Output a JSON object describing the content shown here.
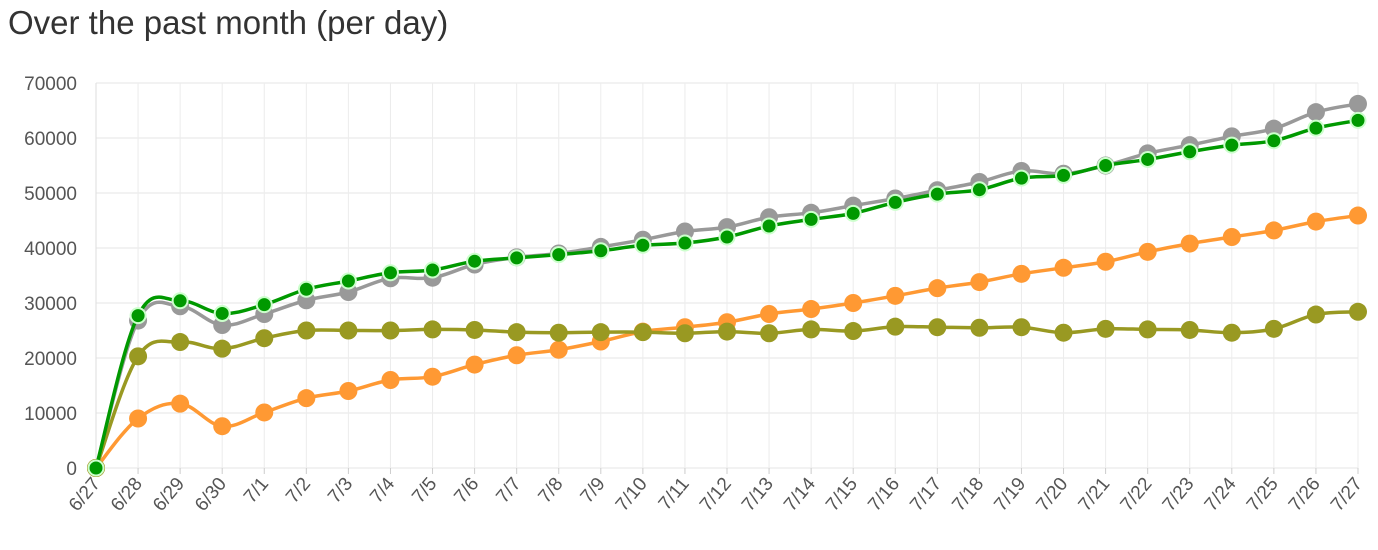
{
  "chart_data": {
    "type": "line",
    "title": "Over the past month (per day)",
    "categories": [
      "6/27",
      "6/28",
      "6/29",
      "6/30",
      "7/1",
      "7/2",
      "7/3",
      "7/4",
      "7/5",
      "7/6",
      "7/7",
      "7/8",
      "7/9",
      "7/10",
      "7/11",
      "7/12",
      "7/13",
      "7/14",
      "7/15",
      "7/16",
      "7/17",
      "7/18",
      "7/19",
      "7/20",
      "7/21",
      "7/22",
      "7/23",
      "7/24",
      "7/25",
      "7/26",
      "7/27"
    ],
    "ylim": [
      0,
      70000
    ],
    "yticks": [
      0,
      10000,
      20000,
      30000,
      40000,
      50000,
      60000,
      70000
    ],
    "grid": true,
    "series": [
      {
        "color": "#999999",
        "values": [
          0,
          26800,
          29400,
          26000,
          28000,
          30500,
          32000,
          34500,
          34600,
          37000,
          38300,
          39000,
          40200,
          41500,
          43000,
          43800,
          45600,
          46400,
          47700,
          49000,
          50500,
          52000,
          54000,
          53500,
          55000,
          57200,
          58700,
          60300,
          61700,
          64700,
          66200
        ]
      },
      {
        "color": "#ff9933",
        "values": [
          0,
          9000,
          11700,
          7600,
          10100,
          12700,
          14000,
          16000,
          16600,
          18800,
          20500,
          21500,
          23000,
          24800,
          25600,
          26500,
          28000,
          28900,
          30000,
          31300,
          32700,
          33800,
          35300,
          36400,
          37500,
          39300,
          40800,
          42000,
          43200,
          44800,
          45900
        ]
      },
      {
        "color": "#009900",
        "values": [
          0,
          27700,
          30400,
          28100,
          29700,
          32500,
          34000,
          35500,
          36000,
          37600,
          38200,
          38800,
          39500,
          40500,
          40900,
          42000,
          44000,
          45200,
          46300,
          48300,
          49800,
          50600,
          52700,
          53200,
          55000,
          56100,
          57500,
          58700,
          59500,
          61800,
          63200
        ]
      },
      {
        "color": "#999922",
        "values": [
          0,
          20300,
          22900,
          21700,
          23600,
          25000,
          25000,
          25000,
          25200,
          25100,
          24700,
          24600,
          24700,
          24700,
          24500,
          24800,
          24500,
          25200,
          24900,
          25700,
          25600,
          25500,
          25600,
          24600,
          25300,
          25200,
          25100,
          24600,
          25300,
          27900,
          28400
        ]
      }
    ]
  }
}
